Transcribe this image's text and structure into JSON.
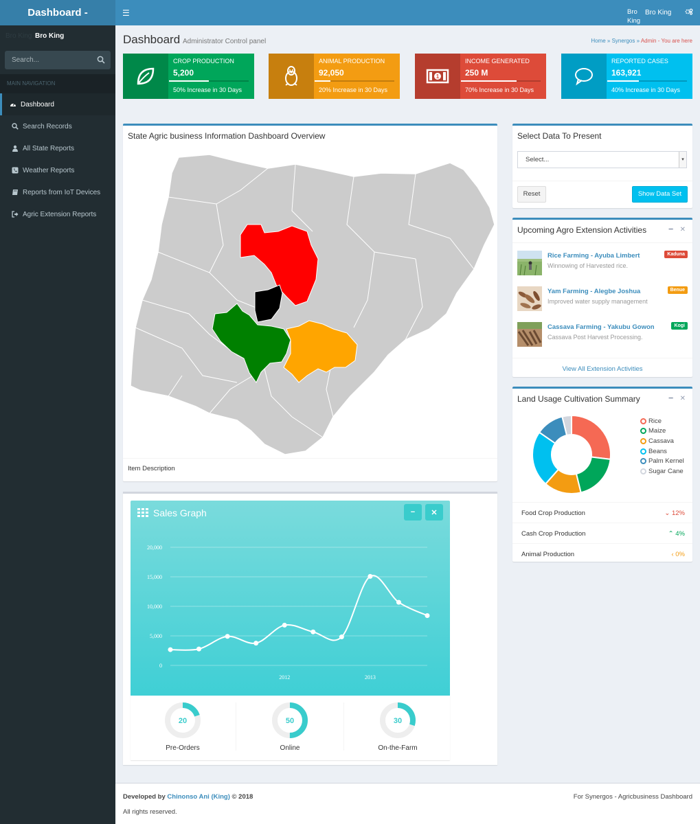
{
  "app": {
    "logo": "Dashboard -"
  },
  "topbar": {
    "user_small": "Bro King",
    "user_name": "Bro King"
  },
  "sidebar": {
    "user_ghost": "Bro King",
    "user_name": "Bro King",
    "search_placeholder": "Search...",
    "nav_header": "MAIN NAVIGATION",
    "items": [
      {
        "label": "Dashboard",
        "icon": "dashboard-icon",
        "active": true
      },
      {
        "label": "Search Records",
        "icon": "search-icon"
      },
      {
        "label": "All State Reports",
        "icon": "user-icon"
      },
      {
        "label": "Weather Reports",
        "icon": "phone-square-icon"
      },
      {
        "label": "Reports from IoT Devices",
        "icon": "book-icon"
      },
      {
        "label": "Agric Extension Reports",
        "icon": "sign-out-icon"
      }
    ]
  },
  "header": {
    "title": "Dashboard",
    "subtitle": "Administrator Control panel",
    "breadcrumb": {
      "home": "Home",
      "sep1": " » ",
      "synergos": "Synergos",
      "sep2": " » ",
      "current": "Admin - You are here"
    }
  },
  "info_boxes": [
    {
      "label": "CROP PRODUCTION",
      "value": "5,200",
      "desc": "50% Increase in 30 Days",
      "progress": 50,
      "color": "#00a65a",
      "icon": "leaf-icon"
    },
    {
      "label": "ANIMAL PRODUCTION",
      "value": "92,050",
      "desc": "20% Increase in 30 Days",
      "progress": 20,
      "color": "#f39c12",
      "icon": "linux-icon"
    },
    {
      "label": "INCOME GENERATED",
      "value": "250 M",
      "desc": "70% Increase in 30 Days",
      "progress": 70,
      "color": "#dd4b39",
      "icon": "money-icon"
    },
    {
      "label": "REPORTED CASES",
      "value": "163,921",
      "desc": "40% Increase in 30 Days",
      "progress": 40,
      "color": "#00c0ef",
      "icon": "comment-icon"
    }
  ],
  "map_box": {
    "title": "State Agric business Information Dashboard Overview",
    "item_description": "Item Description"
  },
  "select_box": {
    "title": "Select Data To Present",
    "select_value": "Select...",
    "reset": "Reset",
    "show": "Show Data Set"
  },
  "activities": {
    "title": "Upcoming Agro Extension Activities",
    "items": [
      {
        "title": "Rice Farming - Ayuba Limbert",
        "desc": "Winnowing of Harvested rice.",
        "badge": "Kaduna",
        "badge_color": "#dd4b39"
      },
      {
        "title": "Yam Farming - Alegbe Joshua",
        "desc": "Improved water supply management",
        "badge": "Benue",
        "badge_color": "#f39c12"
      },
      {
        "title": "Cassava Farming - Yakubu Gowon",
        "desc": "Cassava Post Harvest Processing.",
        "badge": "Kogi",
        "badge_color": "#00a65a"
      }
    ],
    "footer": "View All Extension Activities"
  },
  "land_usage": {
    "title": "Land Usage Cultivation Summary",
    "legend": [
      {
        "name": "Rice",
        "color": "#f56954"
      },
      {
        "name": "Maize",
        "color": "#00a65a"
      },
      {
        "name": "Cassava",
        "color": "#f39c12"
      },
      {
        "name": "Beans",
        "color": "#00c0ef"
      },
      {
        "name": "Palm Kernel",
        "color": "#3c8dbc"
      },
      {
        "name": "Sugar Cane",
        "color": "#d2d6de"
      }
    ],
    "stats": [
      {
        "label": "Food Crop Production",
        "value": "12%",
        "arrow": "⌄",
        "color": "#dd4b39"
      },
      {
        "label": "Cash Crop Production",
        "value": "4%",
        "arrow": "⌃",
        "color": "#00a65a"
      },
      {
        "label": "Animal Production",
        "value": "0%",
        "arrow": "‹",
        "color": "#f39c12"
      }
    ]
  },
  "chart_data": [
    {
      "type": "pie",
      "labels": [
        "Rice",
        "Maize",
        "Cassava",
        "Beans",
        "Palm Kernel",
        "Sugar Cane"
      ],
      "values": [
        700,
        500,
        400,
        600,
        300,
        100
      ]
    },
    {
      "type": "line",
      "title": "Sales Graph",
      "x": [
        "2011 Q1",
        "2011 Q2",
        "2011 Q3",
        "2011 Q4",
        "2012 Q1",
        "2012 Q2",
        "2012 Q3",
        "2013 Q1",
        "2013 Q2",
        "2013 Q3"
      ],
      "series": [
        {
          "values": [
            2666,
            2778,
            4912,
            3767,
            6810,
            5670,
            4820,
            15073,
            10687,
            8432
          ]
        }
      ],
      "yticks": [
        "0",
        "5,000",
        "10,000",
        "15,000",
        "20,000"
      ],
      "xticks": [
        "2012",
        "2013"
      ],
      "ylim": [
        0,
        20000
      ]
    }
  ],
  "sales": {
    "title": "Sales Graph",
    "minus": "−",
    "close": "✕",
    "knobs": [
      {
        "value": 20,
        "label": "Pre-Orders"
      },
      {
        "value": 50,
        "label": "Online"
      },
      {
        "value": 30,
        "label": "On-the-Farm"
      }
    ]
  },
  "footer": {
    "developed": "Developed by ",
    "author": "Chinonso Ani (King)",
    "year": " © 2018",
    "right": "For Synergos - Agricbusiness Dashboard",
    "rights": "All rights reserved."
  }
}
